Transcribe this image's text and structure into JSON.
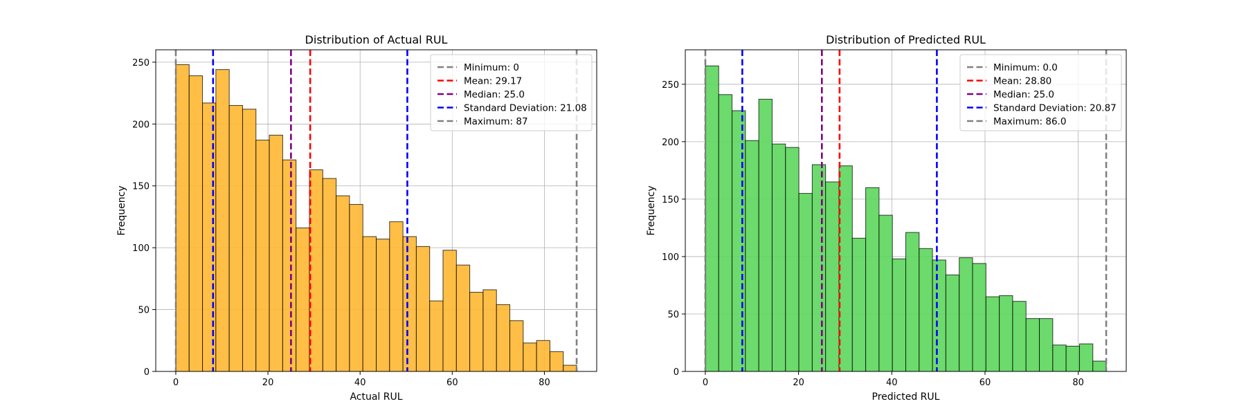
{
  "chart_data": [
    {
      "type": "bar",
      "title": "Distribution of Actual RUL",
      "xlabel": "Actual RUL",
      "ylabel": "Frequency",
      "xlim": [
        -4.35,
        91.35
      ],
      "ylim": [
        0,
        260
      ],
      "xticks": [
        0,
        20,
        40,
        60,
        80
      ],
      "yticks": [
        0,
        50,
        100,
        150,
        200,
        250
      ],
      "grid": true,
      "legend_position": "top-right",
      "bar_color": "#FFB732",
      "bin_edges": [
        0,
        2.9,
        5.8,
        8.7,
        11.6,
        14.5,
        17.4,
        20.3,
        23.2,
        26.1,
        29.0,
        31.9,
        34.8,
        37.7,
        40.6,
        43.5,
        46.4,
        49.3,
        52.2,
        55.1,
        58.0,
        60.9,
        63.8,
        66.7,
        69.6,
        72.5,
        75.4,
        78.3,
        81.2,
        84.1,
        87.0
      ],
      "values": [
        248,
        239,
        217,
        244,
        215,
        212,
        187,
        191,
        171,
        116,
        163,
        156,
        142,
        135,
        109,
        107,
        121,
        109,
        101,
        57,
        98,
        86,
        64,
        66,
        54,
        41,
        23,
        25,
        16,
        5
      ],
      "lines": [
        {
          "label": "Minimum: 0",
          "x": 0,
          "color": "#808080"
        },
        {
          "label": "Mean: 29.17",
          "x": 29.17,
          "color": "#ff0000"
        },
        {
          "label": "Median: 25.0",
          "x": 25.0,
          "color": "#800080"
        },
        {
          "label": "Standard Deviation: 21.08",
          "x": [
            8.09,
            50.25
          ],
          "color": "#0000ff"
        },
        {
          "label": "Maximum: 87",
          "x": 87,
          "color": "#808080"
        }
      ]
    },
    {
      "type": "bar",
      "title": "Distribution of Predicted RUL",
      "xlabel": "Predicted RUL",
      "ylabel": "Frequency",
      "xlim": [
        -4.3,
        90.3
      ],
      "ylim": [
        0,
        280
      ],
      "xticks": [
        0,
        20,
        40,
        60,
        80
      ],
      "yticks": [
        0,
        50,
        100,
        150,
        200,
        250
      ],
      "grid": true,
      "legend_position": "top-right",
      "bar_color": "#5CD65C",
      "bin_edges": [
        0,
        2.867,
        5.733,
        8.6,
        11.467,
        14.333,
        17.2,
        20.067,
        22.933,
        25.8,
        28.667,
        31.533,
        34.4,
        37.267,
        40.133,
        43.0,
        45.867,
        48.733,
        51.6,
        54.467,
        57.333,
        60.2,
        63.067,
        65.933,
        68.8,
        71.667,
        74.533,
        77.4,
        80.267,
        83.133,
        86.0
      ],
      "values": [
        266,
        241,
        227,
        201,
        237,
        198,
        195,
        155,
        180,
        165,
        179,
        116,
        160,
        136,
        98,
        121,
        107,
        97,
        84,
        99,
        94,
        65,
        66,
        61,
        46,
        46,
        23,
        22,
        24,
        9
      ],
      "lines": [
        {
          "label": "Minimum: 0.0",
          "x": 0.0,
          "color": "#808080"
        },
        {
          "label": "Mean: 28.80",
          "x": 28.8,
          "color": "#ff0000"
        },
        {
          "label": "Median: 25.0",
          "x": 25.0,
          "color": "#800080"
        },
        {
          "label": "Standard Deviation: 20.87",
          "x": [
            7.93,
            49.67
          ],
          "color": "#0000ff"
        },
        {
          "label": "Maximum: 86.0",
          "x": 86.0,
          "color": "#808080"
        }
      ]
    }
  ]
}
